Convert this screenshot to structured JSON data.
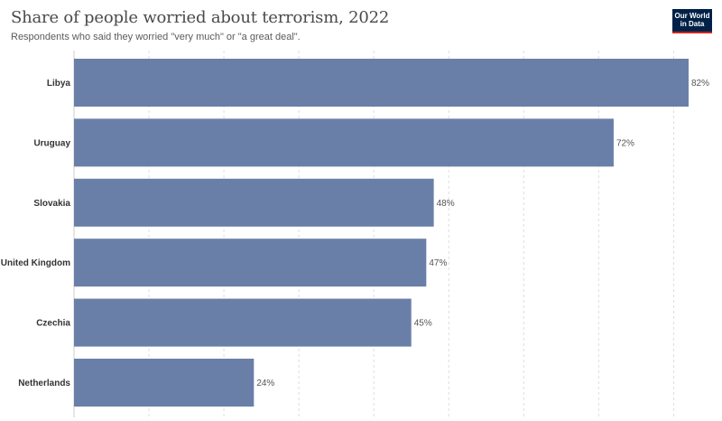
{
  "header": {
    "title": "Share of people worried about terrorism, 2022",
    "subtitle": "Respondents who said they worried \"very much\" or \"a great deal\".",
    "logo_line1": "Our World",
    "logo_line2": "in Data"
  },
  "colors": {
    "bar": "#6a7fa8",
    "grid": "#dddddd",
    "logo_bg": "#002147",
    "logo_accent": "#ce261e"
  },
  "chart_data": {
    "type": "bar",
    "orientation": "horizontal",
    "categories": [
      "Libya",
      "Uruguay",
      "Slovakia",
      "United Kingdom",
      "Czechia",
      "Netherlands"
    ],
    "values": [
      82,
      72,
      48,
      47,
      45,
      24
    ],
    "value_labels": [
      "82%",
      "72%",
      "48%",
      "47%",
      "45%",
      "24%"
    ],
    "xlim": [
      0,
      82
    ],
    "grid": "vertical dashed",
    "legend": "none"
  }
}
